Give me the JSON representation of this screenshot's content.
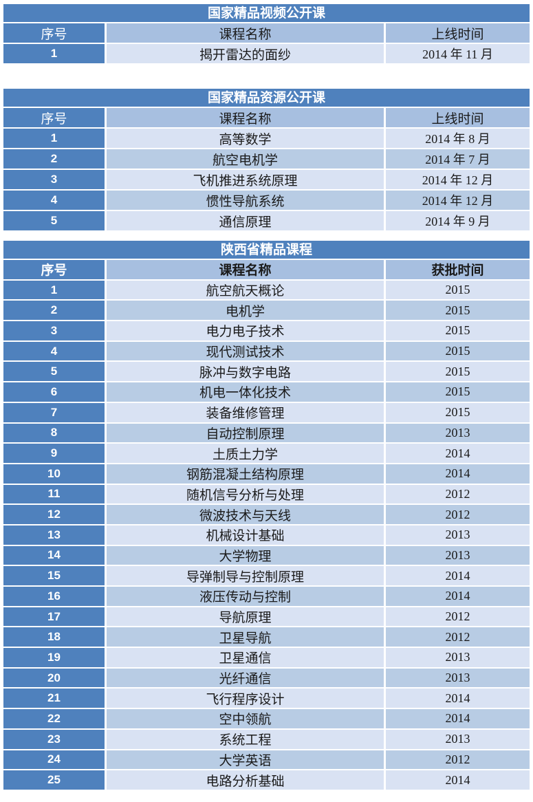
{
  "colors": {
    "accent": "#4f81bd",
    "header_bg": "#a7bfe0",
    "row_light": "#d9e2f3",
    "row_dark": "#b8cce4"
  },
  "national_video": {
    "title": "国家精品视频公开课",
    "headers": {
      "index": "序号",
      "name": "课程名称",
      "date": "上线时间"
    },
    "rows": [
      {
        "index": "1",
        "name": "揭开雷达的面纱",
        "date": "2014 年 11 月"
      }
    ]
  },
  "national_resource": {
    "title": "国家精品资源公开课",
    "headers": {
      "index": "序号",
      "name": "课程名称",
      "date": "上线时间"
    },
    "rows": [
      {
        "index": "1",
        "name": "高等数学",
        "date": "2014 年 8 月"
      },
      {
        "index": "2",
        "name": "航空电机学",
        "date": "2014 年 7 月"
      },
      {
        "index": "3",
        "name": "飞机推进系统原理",
        "date": "2014 年 12 月"
      },
      {
        "index": "4",
        "name": "惯性导航系统",
        "date": "2014 年 12 月"
      },
      {
        "index": "5",
        "name": "通信原理",
        "date": "2014 年 9 月"
      }
    ]
  },
  "shaanxi": {
    "title": "陕西省精品课程",
    "headers": {
      "index": "序号",
      "name": "课程名称",
      "date": "获批时间"
    },
    "rows": [
      {
        "index": "1",
        "name": "航空航天概论",
        "date": "2015"
      },
      {
        "index": "2",
        "name": "电机学",
        "date": "2015"
      },
      {
        "index": "3",
        "name": "电力电子技术",
        "date": "2015"
      },
      {
        "index": "4",
        "name": "现代测试技术",
        "date": "2015"
      },
      {
        "index": "5",
        "name": "脉冲与数字电路",
        "date": "2015"
      },
      {
        "index": "6",
        "name": "机电一体化技术",
        "date": "2015"
      },
      {
        "index": "7",
        "name": "装备维修管理",
        "date": "2015"
      },
      {
        "index": "8",
        "name": "自动控制原理",
        "date": "2013"
      },
      {
        "index": "9",
        "name": "土质土力学",
        "date": "2014"
      },
      {
        "index": "10",
        "name": "钢筋混凝土结构原理",
        "date": "2014"
      },
      {
        "index": "11",
        "name": "随机信号分析与处理",
        "date": "2012"
      },
      {
        "index": "12",
        "name": "微波技术与天线",
        "date": "2012"
      },
      {
        "index": "13",
        "name": "机械设计基础",
        "date": "2013"
      },
      {
        "index": "14",
        "name": "大学物理",
        "date": "2013"
      },
      {
        "index": "15",
        "name": "导弹制导与控制原理",
        "date": "2014"
      },
      {
        "index": "16",
        "name": "液压传动与控制",
        "date": "2014"
      },
      {
        "index": "17",
        "name": "导航原理",
        "date": "2012"
      },
      {
        "index": "18",
        "name": "卫星导航",
        "date": "2012"
      },
      {
        "index": "19",
        "name": "卫星通信",
        "date": "2013"
      },
      {
        "index": "20",
        "name": "光纤通信",
        "date": "2013"
      },
      {
        "index": "21",
        "name": "飞行程序设计",
        "date": "2014"
      },
      {
        "index": "22",
        "name": "空中领航",
        "date": "2014"
      },
      {
        "index": "23",
        "name": "系统工程",
        "date": "2013"
      },
      {
        "index": "24",
        "name": "大学英语",
        "date": "2012"
      },
      {
        "index": "25",
        "name": "电路分析基础",
        "date": "2014"
      }
    ]
  }
}
